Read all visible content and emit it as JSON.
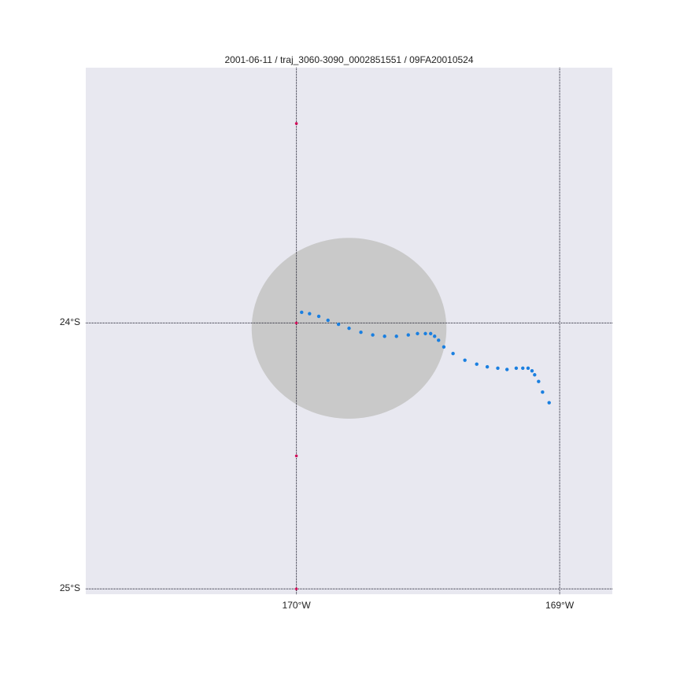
{
  "map": {
    "title": "2001-06-11 / traj_3060-3090_0002851551 / 09FA20010524",
    "colors": {
      "background": "#e8e8f0",
      "gridline": "#111122",
      "track": "#1a7fe0",
      "stations": "#d0105a",
      "coverage": "#c9c9c9"
    },
    "extent": {
      "lon": [
        -170.8,
        -168.8
      ],
      "lat": [
        -25.02,
        -23.04
      ]
    },
    "gridlines": {
      "lon": [
        {
          "value": -170,
          "label": "170°W"
        },
        {
          "value": -169,
          "label": "169°W"
        }
      ],
      "lat": [
        {
          "value": -24,
          "label": "24°S"
        },
        {
          "value": -25,
          "label": "25°S"
        }
      ]
    },
    "coverage_circle": {
      "center_lon": -169.8,
      "center_lat": -24.02,
      "radius_lon": 0.37,
      "radius_lat": 0.34
    },
    "stations": [
      {
        "lon": -170.0,
        "lat": -23.25
      },
      {
        "lon": -170.0,
        "lat": -24.0
      },
      {
        "lon": -170.0,
        "lat": -24.5
      },
      {
        "lon": -170.0,
        "lat": -25.0
      }
    ],
    "trajectory": [
      {
        "lon": -169.98,
        "lat": -23.96
      },
      {
        "lon": -169.95,
        "lat": -23.965
      },
      {
        "lon": -169.915,
        "lat": -23.975
      },
      {
        "lon": -169.88,
        "lat": -23.99
      },
      {
        "lon": -169.84,
        "lat": -24.005
      },
      {
        "lon": -169.8,
        "lat": -24.02
      },
      {
        "lon": -169.755,
        "lat": -24.035
      },
      {
        "lon": -169.71,
        "lat": -24.045
      },
      {
        "lon": -169.665,
        "lat": -24.05
      },
      {
        "lon": -169.62,
        "lat": -24.05
      },
      {
        "lon": -169.575,
        "lat": -24.045
      },
      {
        "lon": -169.54,
        "lat": -24.04
      },
      {
        "lon": -169.51,
        "lat": -24.04
      },
      {
        "lon": -169.49,
        "lat": -24.04
      },
      {
        "lon": -169.475,
        "lat": -24.05
      },
      {
        "lon": -169.46,
        "lat": -24.065
      },
      {
        "lon": -169.44,
        "lat": -24.09
      },
      {
        "lon": -169.405,
        "lat": -24.115
      },
      {
        "lon": -169.36,
        "lat": -24.14
      },
      {
        "lon": -169.315,
        "lat": -24.155
      },
      {
        "lon": -169.275,
        "lat": -24.165
      },
      {
        "lon": -169.235,
        "lat": -24.17
      },
      {
        "lon": -169.2,
        "lat": -24.175
      },
      {
        "lon": -169.165,
        "lat": -24.17
      },
      {
        "lon": -169.14,
        "lat": -24.17
      },
      {
        "lon": -169.12,
        "lat": -24.17
      },
      {
        "lon": -169.105,
        "lat": -24.18
      },
      {
        "lon": -169.095,
        "lat": -24.195
      },
      {
        "lon": -169.08,
        "lat": -24.22
      },
      {
        "lon": -169.065,
        "lat": -24.26
      },
      {
        "lon": -169.04,
        "lat": -24.3
      }
    ]
  }
}
